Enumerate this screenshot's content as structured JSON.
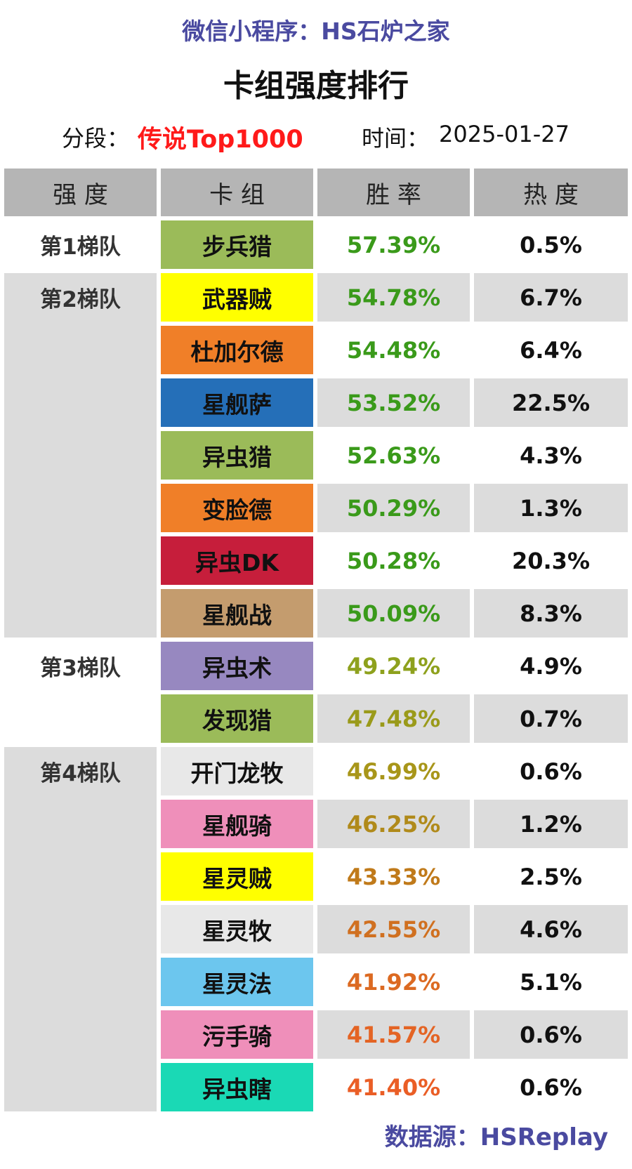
{
  "header": {
    "wechat": "微信小程序：HS石炉之家",
    "title": "卡组强度排行",
    "rank_label": "分段：",
    "rank_value": "传说Top1000",
    "time_label": "时间：",
    "time_value": "2025-01-27"
  },
  "columns": [
    "强 度",
    "卡 组",
    "胜 率",
    "热 度"
  ],
  "tiers": [
    {
      "label": "第1梯队",
      "rows": [
        0
      ]
    },
    {
      "label": "第2梯队",
      "rows": [
        1,
        2,
        3,
        4,
        5,
        6,
        7
      ]
    },
    {
      "label": "第3梯队",
      "rows": [
        8,
        9
      ]
    },
    {
      "label": "第4梯队",
      "rows": [
        10,
        11,
        12,
        13,
        14,
        15,
        16
      ]
    }
  ],
  "decks": [
    {
      "name": "步兵猎",
      "winrate": "57.39%",
      "popularity": "0.5%",
      "color": "#9bbb59",
      "wr_color": "#3a9a1a"
    },
    {
      "name": "武器贼",
      "winrate": "54.78%",
      "popularity": "6.7%",
      "color": "#ffff00",
      "wr_color": "#3a9a1a"
    },
    {
      "name": "杜加尔德",
      "winrate": "54.48%",
      "popularity": "6.4%",
      "color": "#f07f28",
      "wr_color": "#3a9a1a"
    },
    {
      "name": "星舰萨",
      "winrate": "53.52%",
      "popularity": "22.5%",
      "color": "#256fb8",
      "wr_color": "#3a9a1a"
    },
    {
      "name": "异虫猎",
      "winrate": "52.63%",
      "popularity": "4.3%",
      "color": "#9bbb59",
      "wr_color": "#3a9a1a"
    },
    {
      "name": "变脸德",
      "winrate": "50.29%",
      "popularity": "1.3%",
      "color": "#f07f28",
      "wr_color": "#3a9a1a"
    },
    {
      "name": "异虫DK",
      "winrate": "50.28%",
      "popularity": "20.3%",
      "color": "#c61e3b",
      "wr_color": "#3a9a1a"
    },
    {
      "name": "星舰战",
      "winrate": "50.09%",
      "popularity": "8.3%",
      "color": "#c49c6e",
      "wr_color": "#3a9a1a"
    },
    {
      "name": "异虫术",
      "winrate": "49.24%",
      "popularity": "4.9%",
      "color": "#9788c0",
      "wr_color": "#8ea11d"
    },
    {
      "name": "发现猎",
      "winrate": "47.48%",
      "popularity": "0.7%",
      "color": "#9bbb59",
      "wr_color": "#9a9a1a"
    },
    {
      "name": "开门龙牧",
      "winrate": "46.99%",
      "popularity": "0.6%",
      "color": "#e8e8e8",
      "wr_color": "#a8961a"
    },
    {
      "name": "星舰骑",
      "winrate": "46.25%",
      "popularity": "1.2%",
      "color": "#ef8fba",
      "wr_color": "#b08a1a"
    },
    {
      "name": "星灵贼",
      "winrate": "43.33%",
      "popularity": "2.5%",
      "color": "#ffff00",
      "wr_color": "#c07a1a"
    },
    {
      "name": "星灵牧",
      "winrate": "42.55%",
      "popularity": "4.6%",
      "color": "#e8e8e8",
      "wr_color": "#d07020"
    },
    {
      "name": "星灵法",
      "winrate": "41.92%",
      "popularity": "5.1%",
      "color": "#6cc6ee",
      "wr_color": "#dc6a22"
    },
    {
      "name": "污手骑",
      "winrate": "41.57%",
      "popularity": "0.6%",
      "color": "#ef8fba",
      "wr_color": "#e46424"
    },
    {
      "name": "异虫瞎",
      "winrate": "41.40%",
      "popularity": "0.6%",
      "color": "#1ad9b5",
      "wr_color": "#ea5e26"
    }
  ],
  "footer": {
    "source": "数据源：HSReplay"
  }
}
